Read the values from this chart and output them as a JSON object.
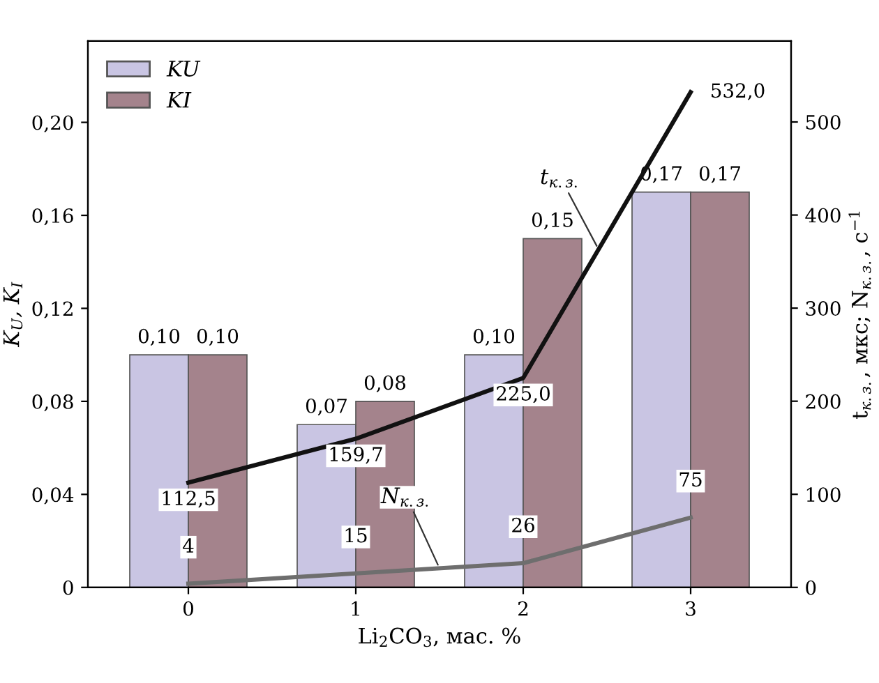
{
  "chart_data": {
    "type": "bar",
    "categories": [
      "0",
      "1",
      "2",
      "3"
    ],
    "xlabel": "Li$_{2}$CO$_{3}$, мас. %",
    "ylabel": "K$_{U}$, K$_{I}$",
    "y2label": "t$_{к.з.}$, мкс; N$_{к.з.}$, с$^{−1}$",
    "series": [
      {
        "name": "KU",
        "color": "#c9c5e3",
        "values": [
          0.1,
          0.07,
          0.1,
          0.17
        ],
        "value_labels": [
          "0,10",
          "0,07",
          "0,10",
          "0,17"
        ]
      },
      {
        "name": "KI",
        "color": "#a4838c",
        "values": [
          0.1,
          0.08,
          0.15,
          0.17
        ],
        "value_labels": [
          "0,10",
          "0,08",
          "0,15",
          "0,17"
        ]
      },
      {
        "name": "t$_{к.з.}$",
        "type": "line",
        "axis": "y2",
        "color": "#111111",
        "values": [
          112.5,
          159.7,
          225.0,
          532.0
        ],
        "value_labels": [
          "112,5",
          "159,7",
          "225,0",
          "532,0"
        ]
      },
      {
        "name": "N$_{к.з.}$",
        "type": "line",
        "axis": "y2",
        "color": "#6e6e6e",
        "values": [
          4,
          15,
          26,
          75
        ],
        "value_labels": [
          "4",
          "15",
          "26",
          "75"
        ]
      }
    ],
    "ylim": [
      0,
      0.235
    ],
    "yticks": [
      0,
      {
        "value": 0.04,
        "label": "0,04"
      },
      {
        "value": 0.08,
        "label": "0,08"
      },
      {
        "value": 0.12,
        "label": "0,12"
      },
      {
        "value": 0.16,
        "label": "0,16"
      },
      {
        "value": 0.2,
        "label": "0,20"
      }
    ],
    "y2lim": [
      0,
      587
    ],
    "y2ticks": [
      0,
      100,
      200,
      300,
      400,
      500
    ],
    "legend": "top left",
    "grid": false,
    "marker": "none",
    "line_style": "solid"
  }
}
